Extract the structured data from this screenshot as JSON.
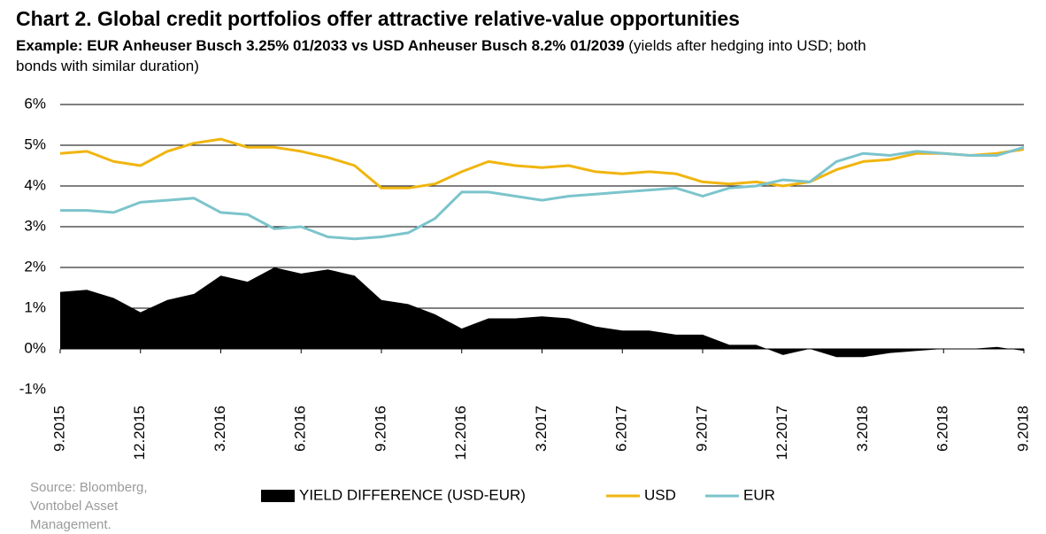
{
  "chart_data": {
    "type": "area-line",
    "title": "Chart 2. Global credit portfolios offer attractive relative-value opportunities",
    "subtitle_bold": "Example: EUR Anheuser Busch 3.25% 01/2033 vs USD Anheuser Busch 8.2% 01/2039",
    "subtitle": "(yields after hedging into USD; both bonds with similar duration)",
    "source": "Source: Bloomberg, Vontobel Asset Management.",
    "categories": [
      "9.2015",
      null,
      null,
      "12.2015",
      null,
      null,
      "3.2016",
      null,
      null,
      "6.2016",
      null,
      null,
      "9.2016",
      null,
      null,
      "12.2016",
      null,
      null,
      "3.2017",
      null,
      null,
      "6.2017",
      null,
      null,
      "9.2017",
      null,
      null,
      "12.2017",
      null,
      null,
      "3.2018",
      null,
      null,
      "6.2018",
      null,
      null,
      "9.2018"
    ],
    "series": [
      {
        "name": "YIELD DIFFERENCE (USD-EUR)",
        "color": "#000000",
        "kind": "area",
        "values": [
          1.4,
          1.45,
          1.25,
          0.9,
          1.2,
          1.35,
          1.8,
          1.65,
          2.0,
          1.85,
          1.95,
          1.8,
          1.2,
          1.1,
          0.85,
          0.5,
          0.75,
          0.75,
          0.8,
          0.75,
          0.55,
          0.45,
          0.45,
          0.35,
          0.35,
          0.1,
          0.1,
          -0.15,
          0.0,
          -0.2,
          -0.2,
          -0.1,
          -0.05,
          0.0,
          0.0,
          0.05,
          -0.05
        ]
      },
      {
        "name": "USD",
        "color": "#f0b50f",
        "kind": "line",
        "values": [
          4.8,
          4.85,
          4.6,
          4.5,
          4.85,
          5.05,
          5.15,
          4.95,
          4.95,
          4.85,
          4.7,
          4.5,
          3.95,
          3.95,
          4.05,
          4.35,
          4.6,
          4.5,
          4.45,
          4.5,
          4.35,
          4.3,
          4.35,
          4.3,
          4.1,
          4.05,
          4.1,
          4.0,
          4.1,
          4.4,
          4.6,
          4.65,
          4.8,
          4.8,
          4.75,
          4.8,
          4.9
        ]
      },
      {
        "name": "EUR",
        "color": "#7cc4cc",
        "kind": "line",
        "values": [
          3.4,
          3.4,
          3.35,
          3.6,
          3.65,
          3.7,
          3.35,
          3.3,
          2.95,
          3.0,
          2.75,
          2.7,
          2.75,
          2.85,
          3.2,
          3.85,
          3.85,
          3.75,
          3.65,
          3.75,
          3.8,
          3.85,
          3.9,
          3.95,
          3.75,
          3.95,
          4.0,
          4.15,
          4.1,
          4.6,
          4.8,
          4.75,
          4.85,
          4.8,
          4.75,
          4.75,
          4.95
        ]
      }
    ],
    "ylim": [
      -1,
      6
    ],
    "yticks": [
      {
        "value": -1,
        "label": "-1%"
      },
      {
        "value": 0,
        "label": "0%"
      },
      {
        "value": 1,
        "label": "1%"
      },
      {
        "value": 2,
        "label": "2%"
      },
      {
        "value": 3,
        "label": "3%"
      },
      {
        "value": 4,
        "label": "4%"
      },
      {
        "value": 5,
        "label": "5%"
      },
      {
        "value": 6,
        "label": "6%"
      }
    ],
    "grid": true,
    "legend": "bottom"
  }
}
